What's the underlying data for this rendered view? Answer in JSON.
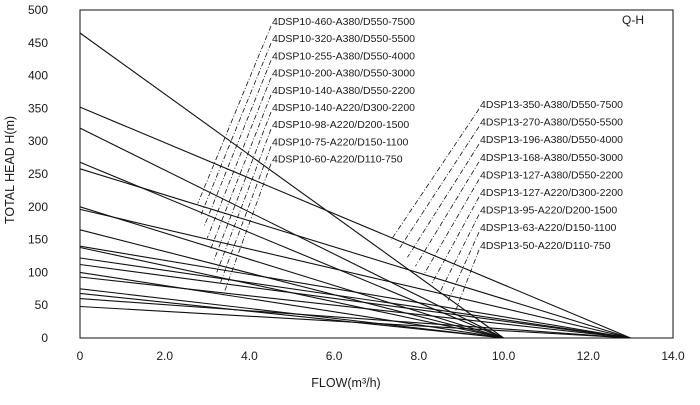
{
  "chart_data": {
    "type": "line",
    "title_box": "Q-H",
    "xlabel": "FLOW(m³/h)",
    "ylabel": "TOTAL HEAD H(m)",
    "xlim": [
      0,
      14
    ],
    "ylim": [
      0,
      500
    ],
    "x_ticks": [
      "0",
      "2.0",
      "4.0",
      "6.0",
      "8.0",
      "10.0",
      "12.0",
      "14.0"
    ],
    "y_ticks": [
      "0",
      "50",
      "100",
      "150",
      "200",
      "250",
      "300",
      "350",
      "400",
      "450",
      "500"
    ],
    "grid": false,
    "series": [
      {
        "name": "4DSP10-460-A380/D550-7500",
        "group": "10",
        "x": [
          0,
          10.0
        ],
        "y": [
          465,
          0
        ]
      },
      {
        "name": "4DSP10-320-A380/D550-5500",
        "group": "10",
        "x": [
          0,
          10.0
        ],
        "y": [
          320,
          0
        ]
      },
      {
        "name": "4DSP10-255-A380/D550-4000",
        "group": "10",
        "x": [
          0,
          10.0
        ],
        "y": [
          268,
          0
        ]
      },
      {
        "name": "4DSP10-200-A380/D550-3000",
        "group": "10",
        "x": [
          0,
          10.0
        ],
        "y": [
          200,
          0
        ]
      },
      {
        "name": "4DSP10-140-A380/D550-2200",
        "group": "10",
        "x": [
          0,
          10.0
        ],
        "y": [
          165,
          0
        ]
      },
      {
        "name": "4DSP10-140-A220/D300-2200",
        "group": "10",
        "x": [
          0,
          10.0
        ],
        "y": [
          138,
          0
        ]
      },
      {
        "name": "4DSP10-98-A220/D200-1500",
        "group": "10",
        "x": [
          0,
          10.0
        ],
        "y": [
          100,
          0
        ]
      },
      {
        "name": "4DSP10-75-A220/D150-1100",
        "group": "10",
        "x": [
          0,
          10.0
        ],
        "y": [
          75,
          0
        ]
      },
      {
        "name": "4DSP10-60-A220/D110-750",
        "group": "10",
        "x": [
          0,
          10.0
        ],
        "y": [
          68,
          0
        ]
      },
      {
        "name": "4DSP13-350-A380/D550-7500",
        "group": "13",
        "x": [
          0,
          13.0
        ],
        "y": [
          352,
          0
        ]
      },
      {
        "name": "4DSP13-270-A380/D550-5500",
        "group": "13",
        "x": [
          0,
          13.0
        ],
        "y": [
          258,
          0
        ]
      },
      {
        "name": "4DSP13-196-A380/D550-4000",
        "group": "13",
        "x": [
          0,
          13.0
        ],
        "y": [
          196,
          0
        ]
      },
      {
        "name": "4DSP13-168-A380/D550-3000",
        "group": "13",
        "x": [
          0,
          13.0
        ],
        "y": [
          122,
          0
        ]
      },
      {
        "name": "4DSP13-127-A380/D550-2200",
        "group": "13",
        "x": [
          0,
          13.0
        ],
        "y": [
          140,
          0
        ]
      },
      {
        "name": "4DSP13-127-A220/D300-2200",
        "group": "13",
        "x": [
          0,
          13.0
        ],
        "y": [
          112,
          0
        ]
      },
      {
        "name": "4DSP13-95-A220/D200-1500",
        "group": "13",
        "x": [
          0,
          13.0
        ],
        "y": [
          93,
          0
        ]
      },
      {
        "name": "4DSP13-63-A220/D150-1100",
        "group": "13",
        "x": [
          0,
          13.0
        ],
        "y": [
          60,
          0
        ]
      },
      {
        "name": "4DSP13-50-A220/D110-750",
        "group": "13",
        "x": [
          0,
          13.0
        ],
        "y": [
          48,
          0
        ]
      }
    ]
  }
}
